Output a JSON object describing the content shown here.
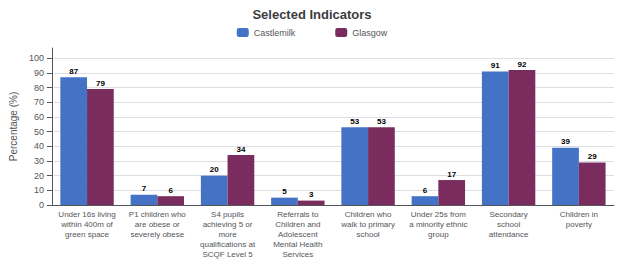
{
  "chart_data": {
    "type": "bar",
    "title": "Selected Indicators",
    "ylabel": "Percentage (%)",
    "categories": [
      "Under 16s living\nwithin 400m of\ngreen space",
      "P1 children who\nare obese or\nseverely obese",
      "S4 pupils\nachieving 5 or\nmore\nqualifications at\nSCQF Level 5",
      "Referrals to\nChildren and\nAdolescent\nMental Health\nServices",
      "Children who\nwalk to primary\nschool",
      "Under 25s from\na minority ethnic\ngroup",
      "Secondary\nschool\nattendance",
      "Children in\npoverty"
    ],
    "series": [
      {
        "name": "Castlemilk",
        "color": "#4472C4",
        "values": [
          87,
          7,
          20,
          5,
          53,
          6,
          91,
          39
        ]
      },
      {
        "name": "Glasgow",
        "color": "#7B2C5E",
        "values": [
          79,
          6,
          34,
          3,
          53,
          17,
          92,
          29
        ]
      }
    ],
    "ylim": [
      0,
      107
    ],
    "yticks": [
      0,
      10,
      20,
      30,
      40,
      50,
      60,
      70,
      80,
      90,
      100
    ],
    "grid": true,
    "legend": "top",
    "data_labels": true
  }
}
